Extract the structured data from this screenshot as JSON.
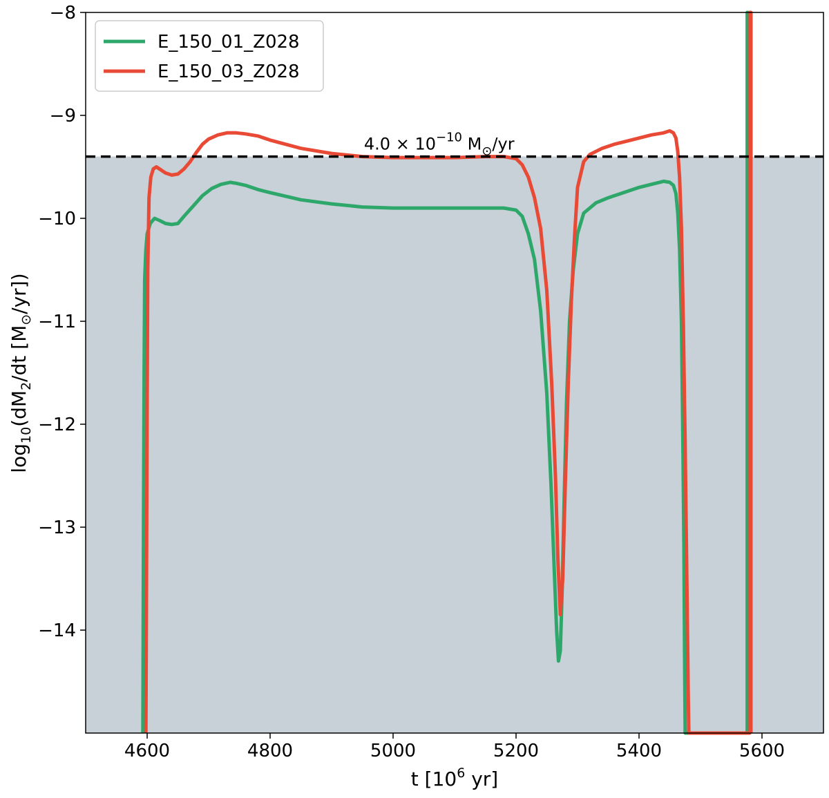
{
  "chart_data": {
    "type": "line",
    "title": "",
    "xlabel": "t [10",
    "xlabel_sup": "6",
    "xlabel_end": " yr]",
    "ylabel_parts": {
      "prefix": "log",
      "sub1": "10",
      "mid": "(dM",
      "sub2": "2",
      "mid2": "/dt [M",
      "sub3": "⊙",
      "end": "/yr])"
    },
    "xlim": [
      4500,
      5700
    ],
    "ylim": [
      -15,
      -8
    ],
    "xticks": [
      4600,
      4800,
      5000,
      5200,
      5400,
      5600
    ],
    "xtick_labels": [
      "4600",
      "4800",
      "5000",
      "5200",
      "5400",
      "5600"
    ],
    "yticks": [
      -14,
      -13,
      -12,
      -11,
      -10,
      -9,
      -8
    ],
    "ytick_labels": [
      "−14",
      "−13",
      "−12",
      "−11",
      "−10",
      "−9",
      "−8"
    ],
    "legend_placement": "top-left",
    "grid": false,
    "threshold": {
      "y": -9.4,
      "style": "dashed",
      "color": "#000000",
      "label_base": "4.0 × 10",
      "label_sup": "−10",
      "label_unit": " M",
      "label_sub": "⊙",
      "label_end": "/yr",
      "shade_color": "#c8d0d8"
    },
    "series": [
      {
        "name": "E_150_01_Z028",
        "color": "#2ea86a",
        "x": [
          4593,
          4594,
          4595,
          4596,
          4598,
          4600,
          4605,
          4612,
          4620,
          4630,
          4640,
          4650,
          4660,
          4675,
          4690,
          4705,
          4720,
          4735,
          4745,
          4760,
          4780,
          4800,
          4850,
          4900,
          4950,
          5000,
          5050,
          5100,
          5150,
          5180,
          5200,
          5210,
          5220,
          5230,
          5240,
          5250,
          5257,
          5262,
          5266,
          5269,
          5272,
          5275,
          5278,
          5282,
          5287,
          5293,
          5300,
          5310,
          5330,
          5350,
          5380,
          5400,
          5420,
          5440,
          5450,
          5456,
          5460,
          5463,
          5466,
          5469,
          5471,
          5473,
          5474,
          5475,
          5576,
          5576,
          5577,
          5577
        ],
        "y": [
          -15,
          -13.0,
          -11.5,
          -10.6,
          -10.3,
          -10.15,
          -10.05,
          -10.0,
          -10.02,
          -10.05,
          -10.06,
          -10.05,
          -9.98,
          -9.88,
          -9.78,
          -9.71,
          -9.67,
          -9.65,
          -9.66,
          -9.68,
          -9.72,
          -9.75,
          -9.82,
          -9.86,
          -9.89,
          -9.9,
          -9.9,
          -9.9,
          -9.9,
          -9.9,
          -9.92,
          -9.98,
          -10.15,
          -10.4,
          -10.9,
          -11.7,
          -12.6,
          -13.4,
          -14.0,
          -14.3,
          -14.2,
          -13.6,
          -12.8,
          -11.8,
          -11.0,
          -10.5,
          -10.15,
          -9.95,
          -9.85,
          -9.8,
          -9.74,
          -9.7,
          -9.67,
          -9.64,
          -9.65,
          -9.68,
          -9.76,
          -9.95,
          -10.3,
          -11.0,
          -12.0,
          -13.2,
          -14.2,
          -15,
          -15,
          -8,
          -8,
          -15
        ]
      },
      {
        "name": "E_150_03_Z028",
        "color": "#e84a35",
        "x": [
          4598,
          4599,
          4600,
          4601,
          4603,
          4606,
          4610,
          4615,
          4620,
          4630,
          4640,
          4650,
          4660,
          4670,
          4680,
          4690,
          4700,
          4715,
          4730,
          4745,
          4760,
          4780,
          4800,
          4850,
          4900,
          4950,
          5000,
          5050,
          5100,
          5150,
          5180,
          5200,
          5210,
          5220,
          5230,
          5240,
          5250,
          5258,
          5264,
          5268,
          5272,
          5276,
          5280,
          5285,
          5290,
          5295,
          5300,
          5310,
          5320,
          5340,
          5360,
          5380,
          5400,
          5420,
          5440,
          5450,
          5456,
          5460,
          5463,
          5466,
          5469,
          5472,
          5475,
          5478,
          5480,
          5481,
          5580,
          5580,
          5582,
          5582
        ],
        "y": [
          -15,
          -13.5,
          -11.8,
          -10.5,
          -9.8,
          -9.6,
          -9.52,
          -9.5,
          -9.52,
          -9.56,
          -9.58,
          -9.57,
          -9.52,
          -9.45,
          -9.36,
          -9.28,
          -9.23,
          -9.19,
          -9.17,
          -9.17,
          -9.18,
          -9.2,
          -9.24,
          -9.32,
          -9.37,
          -9.4,
          -9.41,
          -9.41,
          -9.41,
          -9.4,
          -9.4,
          -9.42,
          -9.48,
          -9.6,
          -9.8,
          -10.1,
          -10.7,
          -11.6,
          -12.5,
          -13.3,
          -13.85,
          -13.5,
          -12.6,
          -11.6,
          -10.8,
          -10.2,
          -9.7,
          -9.45,
          -9.38,
          -9.32,
          -9.28,
          -9.25,
          -9.22,
          -9.19,
          -9.17,
          -9.15,
          -9.17,
          -9.22,
          -9.35,
          -9.6,
          -10.1,
          -11.0,
          -12.2,
          -13.6,
          -14.6,
          -15,
          -15,
          -8,
          -8,
          -15
        ]
      }
    ]
  }
}
